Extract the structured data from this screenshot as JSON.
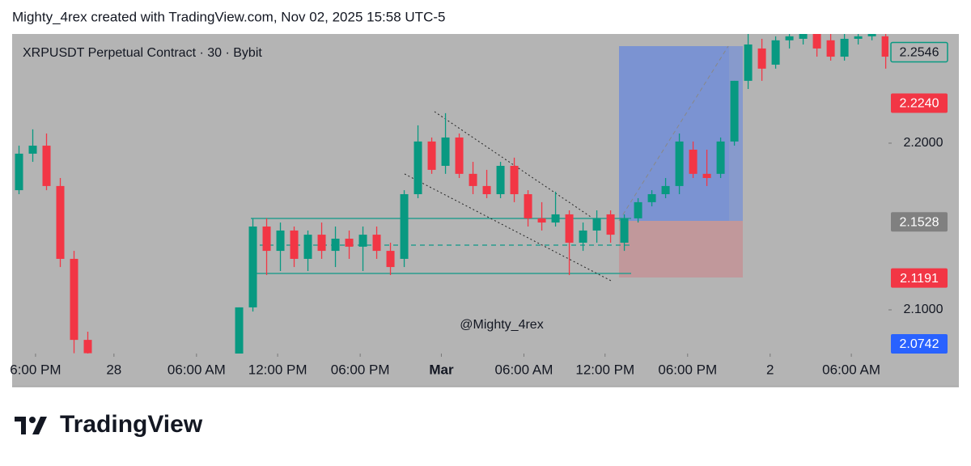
{
  "header": "Mighty_4rex created with TradingView.com, Nov 02, 2025 15:58 UTC-5",
  "logo": "TradingView",
  "chart_data": {
    "type": "candlestick",
    "title": "XRPUSDT Perpetual Contract · 30 · Bybit",
    "watermark": "@Mighty_4rex",
    "up_color": "#089981",
    "down_color": "#f23645",
    "open": [
      2.1718,
      2.1937,
      2.1985,
      2.1743,
      2.1306,
      2.082,
      null,
      null,
      null,
      null,
      null,
      null,
      null,
      null,
      null,
      null,
      2.0675,
      2.1015,
      2.15,
      2.1354,
      2.1476,
      2.1306,
      2.1451,
      2.1354,
      2.1427,
      2.1379,
      2.1451,
      2.1354,
      2.1306,
      2.1694,
      2.201,
      2.1864,
      2.2034,
      2.1816,
      2.1743,
      2.1694,
      2.1864,
      2.1694,
      2.1549,
      2.1524,
      2.1573,
      2.1403,
      2.1476,
      2.1573,
      2.1403,
      2.1549,
      2.1646,
      2.1694,
      2.1743,
      2.1961,
      2.1816,
      2.1816,
      2.201,
      2.2374,
      2.2568,
      2.2471,
      2.2617,
      2.2626,
      2.2655,
      2.2617,
      2.2519,
      2.2626,
      2.2641,
      2.2641
    ],
    "high": [
      2.1985,
      2.2083,
      2.2058,
      2.1791,
      2.1354,
      2.0869,
      null,
      null,
      null,
      null,
      null,
      null,
      null,
      null,
      null,
      null,
      2.1015,
      2.1549,
      2.1549,
      2.1524,
      2.15,
      2.1476,
      2.1524,
      2.15,
      2.1476,
      2.15,
      2.15,
      2.1403,
      2.1718,
      2.2107,
      2.2034,
      2.218,
      2.2058,
      2.1888,
      2.184,
      2.1888,
      2.1913,
      2.1718,
      2.1646,
      2.1709,
      2.1597,
      2.1524,
      2.1597,
      2.1597,
      2.1573,
      2.167,
      2.1718,
      2.1791,
      2.2058,
      2.201,
      2.1961,
      2.2034,
      2.2374,
      2.2655,
      2.2626,
      2.2641,
      2.2655,
      2.2655,
      2.2655,
      2.2655,
      2.2655,
      2.2655,
      2.2655,
      2.2655
    ],
    "low": [
      2.1694,
      2.1888,
      2.1718,
      2.1257,
      2.074,
      2.0675,
      null,
      null,
      null,
      null,
      null,
      null,
      null,
      null,
      null,
      null,
      2.0675,
      2.099,
      2.1209,
      2.1233,
      2.1257,
      2.1233,
      2.1306,
      2.1257,
      2.1306,
      2.1233,
      2.1306,
      2.1209,
      2.1257,
      2.167,
      2.1816,
      2.1816,
      2.1791,
      2.1694,
      2.167,
      2.167,
      2.1646,
      2.15,
      2.1476,
      2.15,
      2.1209,
      2.1354,
      2.1403,
      2.1403,
      2.1354,
      2.1524,
      2.1621,
      2.167,
      2.1694,
      2.1791,
      2.1743,
      2.1791,
      2.1985,
      2.2325,
      2.2374,
      2.2447,
      2.2568,
      2.2592,
      2.2519,
      2.2495,
      2.2495,
      2.2592,
      2.2617,
      2.2447
    ],
    "close": [
      2.1937,
      2.1985,
      2.1743,
      2.1306,
      2.082,
      2.074,
      null,
      null,
      null,
      null,
      null,
      null,
      null,
      null,
      null,
      null,
      2.1015,
      2.15,
      2.1354,
      2.1476,
      2.1306,
      2.1451,
      2.1354,
      2.1427,
      2.1379,
      2.1451,
      2.1354,
      2.1257,
      2.1694,
      2.201,
      2.184,
      2.2034,
      2.1816,
      2.1743,
      2.1694,
      2.1864,
      2.1694,
      2.1549,
      2.1524,
      2.1573,
      2.1403,
      2.1476,
      2.1549,
      2.1451,
      2.1549,
      2.1646,
      2.1694,
      2.1743,
      2.201,
      2.1816,
      2.1791,
      2.201,
      2.2374,
      2.2592,
      2.2447,
      2.2617,
      2.2641,
      2.2655,
      2.2568,
      2.2519,
      2.2626,
      2.2641,
      2.2655,
      2.2519
    ],
    "xlim": [
      0,
      63.7
    ],
    "xticks": [
      {
        "value": 1.7,
        "label": "6:00 PM"
      },
      {
        "value": 7.4,
        "label": "28"
      },
      {
        "value": 13.4,
        "label": "06:00 AM"
      },
      {
        "value": 19.3,
        "label": "12:00 PM"
      },
      {
        "value": 25.3,
        "label": "06:00 PM"
      },
      {
        "value": 31.2,
        "label": "Mar",
        "bold": true
      },
      {
        "value": 37.2,
        "label": "06:00 AM"
      },
      {
        "value": 43.1,
        "label": "12:00 PM"
      },
      {
        "value": 49.1,
        "label": "06:00 PM"
      },
      {
        "value": 55.1,
        "label": "2"
      },
      {
        "value": 61.0,
        "label": "06:00 AM"
      }
    ],
    "ylim": [
      2.0738,
      2.2655
    ],
    "yticks": [
      {
        "value": 2.1,
        "label": "2.1000"
      },
      {
        "value": 2.2,
        "label": "2.2000"
      }
    ],
    "price_labels": [
      {
        "price": 2.2546,
        "color": "#089981",
        "style": "outline"
      },
      {
        "price": {
          "value": 2.224,
          "label": "2.2240"
        },
        "color": "#f23645"
      },
      {
        "price": 2.1528,
        "color": "#808080"
      },
      {
        "price": 2.1191,
        "color": "#f23645"
      },
      {
        "price": 2.0742,
        "color": "#2962ff"
      }
    ]
  }
}
